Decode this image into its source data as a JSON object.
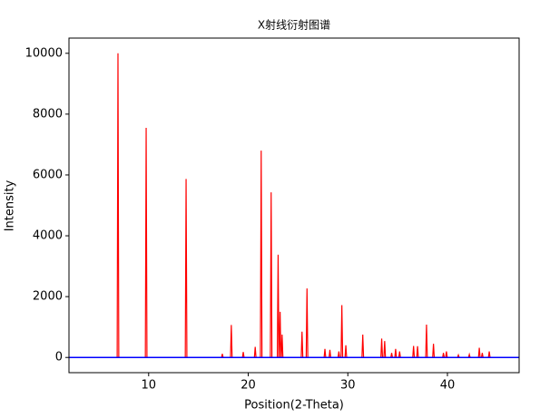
{
  "chart_data": {
    "type": "line",
    "title": "X射线衍射图谱",
    "x_label": "Position(2-Theta)",
    "y_label": "Intensity",
    "xlim": [
      2.0,
      47.2
    ],
    "ylim": [
      -500,
      10500
    ],
    "xticks": [
      10,
      20,
      30,
      40
    ],
    "yticks": [
      0,
      2000,
      4000,
      6000,
      8000,
      10000
    ],
    "hlines": [
      {
        "y": 0,
        "color": "#0000ff"
      }
    ],
    "series": [
      {
        "color": "#ff0000",
        "x": [
          2.5,
          6.84,
          6.92,
          7.0,
          9.67,
          9.75,
          9.83,
          13.68,
          13.76,
          13.84,
          17.32,
          17.4,
          17.48,
          18.22,
          18.3,
          18.38,
          19.42,
          19.5,
          19.58,
          20.62,
          20.7,
          20.78,
          21.22,
          21.3,
          21.38,
          22.22,
          22.3,
          22.38,
          22.92,
          23.0,
          23.08,
          23.12,
          23.2,
          23.28,
          23.32,
          23.4,
          23.48,
          25.32,
          25.4,
          25.48,
          25.82,
          25.9,
          25.98,
          27.62,
          27.7,
          27.78,
          28.12,
          28.2,
          28.28,
          29.02,
          29.1,
          29.18,
          29.32,
          29.4,
          29.48,
          29.72,
          29.8,
          29.88,
          31.42,
          31.5,
          31.58,
          33.32,
          33.4,
          33.48,
          33.62,
          33.7,
          33.78,
          34.32,
          34.4,
          34.48,
          34.72,
          34.8,
          34.88,
          35.12,
          35.2,
          35.28,
          36.52,
          36.6,
          36.68,
          36.92,
          37.0,
          37.08,
          37.82,
          37.9,
          37.98,
          38.52,
          38.6,
          38.68,
          39.52,
          39.6,
          39.68,
          39.82,
          39.9,
          39.98,
          41.02,
          41.1,
          41.18,
          42.12,
          42.2,
          42.28,
          43.12,
          43.2,
          43.28,
          43.42,
          43.5,
          43.58,
          44.12,
          44.2,
          44.28,
          44.8
        ],
        "values": [
          0,
          0,
          10000,
          0,
          0,
          7550,
          0,
          0,
          5870,
          0,
          0,
          120,
          0,
          0,
          1070,
          0,
          0,
          180,
          0,
          0,
          350,
          0,
          0,
          6800,
          0,
          0,
          5430,
          0,
          0,
          3380,
          0,
          0,
          1500,
          0,
          0,
          750,
          0,
          0,
          850,
          0,
          0,
          2270,
          0,
          0,
          280,
          0,
          0,
          250,
          0,
          0,
          200,
          0,
          0,
          1720,
          0,
          0,
          400,
          0,
          0,
          750,
          0,
          0,
          620,
          0,
          0,
          540,
          0,
          0,
          150,
          0,
          0,
          280,
          0,
          0,
          200,
          0,
          0,
          380,
          0,
          0,
          370,
          0,
          0,
          1080,
          0,
          0,
          450,
          0,
          0,
          150,
          0,
          0,
          200,
          0,
          0,
          80,
          0,
          0,
          100,
          0,
          0,
          320,
          0,
          0,
          150,
          0,
          0,
          200,
          0,
          0
        ]
      }
    ]
  }
}
